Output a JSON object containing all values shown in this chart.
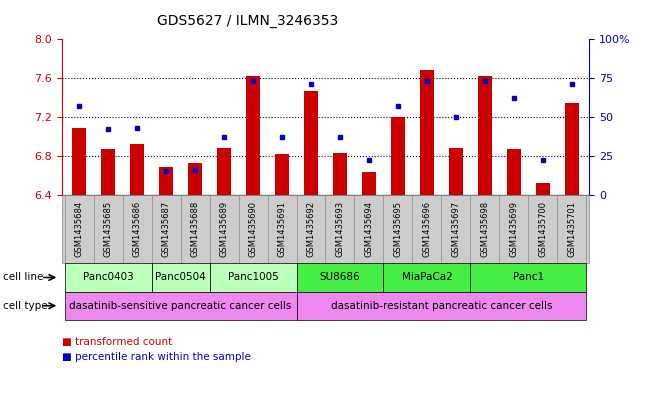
{
  "title": "GDS5627 / ILMN_3246353",
  "samples": [
    "GSM1435684",
    "GSM1435685",
    "GSM1435686",
    "GSM1435687",
    "GSM1435688",
    "GSM1435689",
    "GSM1435690",
    "GSM1435691",
    "GSM1435692",
    "GSM1435693",
    "GSM1435694",
    "GSM1435695",
    "GSM1435696",
    "GSM1435697",
    "GSM1435698",
    "GSM1435699",
    "GSM1435700",
    "GSM1435701"
  ],
  "transformed_count": [
    7.09,
    6.87,
    6.92,
    6.68,
    6.72,
    6.88,
    7.62,
    6.82,
    7.47,
    6.83,
    6.63,
    7.2,
    7.68,
    6.88,
    7.62,
    6.87,
    6.52,
    7.34
  ],
  "percentile_rank": [
    57,
    42,
    43,
    15,
    16,
    37,
    73,
    37,
    71,
    37,
    22,
    57,
    73,
    50,
    73,
    62,
    22,
    71
  ],
  "ylim_left": [
    6.4,
    8.0
  ],
  "ylim_right": [
    0,
    100
  ],
  "yticks_left": [
    6.4,
    6.8,
    7.2,
    7.6,
    8.0
  ],
  "yticks_right": [
    0,
    25,
    50,
    75,
    100
  ],
  "bar_color": "#cc0000",
  "dot_color": "#0000cc",
  "cell_lines": [
    {
      "label": "Panc0403",
      "start": 0,
      "end": 3,
      "color": "#bbffbb"
    },
    {
      "label": "Panc0504",
      "start": 3,
      "end": 5,
      "color": "#bbffbb"
    },
    {
      "label": "Panc1005",
      "start": 5,
      "end": 8,
      "color": "#bbffbb"
    },
    {
      "label": "SU8686",
      "start": 8,
      "end": 11,
      "color": "#44ee44"
    },
    {
      "label": "MiaPaCa2",
      "start": 11,
      "end": 14,
      "color": "#44ee44"
    },
    {
      "label": "Panc1",
      "start": 14,
      "end": 18,
      "color": "#44ee44"
    }
  ],
  "cell_types": [
    {
      "label": "dasatinib-sensitive pancreatic cancer cells",
      "start": 0,
      "end": 8,
      "color": "#ee88ee"
    },
    {
      "label": "dasatinib-resistant pancreatic cancer cells",
      "start": 8,
      "end": 18,
      "color": "#ee88ee"
    }
  ],
  "bg_color": "#ffffff",
  "tick_color_left": "#cc0000",
  "tick_color_right": "#0000cc",
  "title_fontsize": 10,
  "bar_width": 0.5,
  "xtick_bg_color": "#cccccc",
  "grid_yticks": [
    6.8,
    7.2,
    7.6
  ]
}
